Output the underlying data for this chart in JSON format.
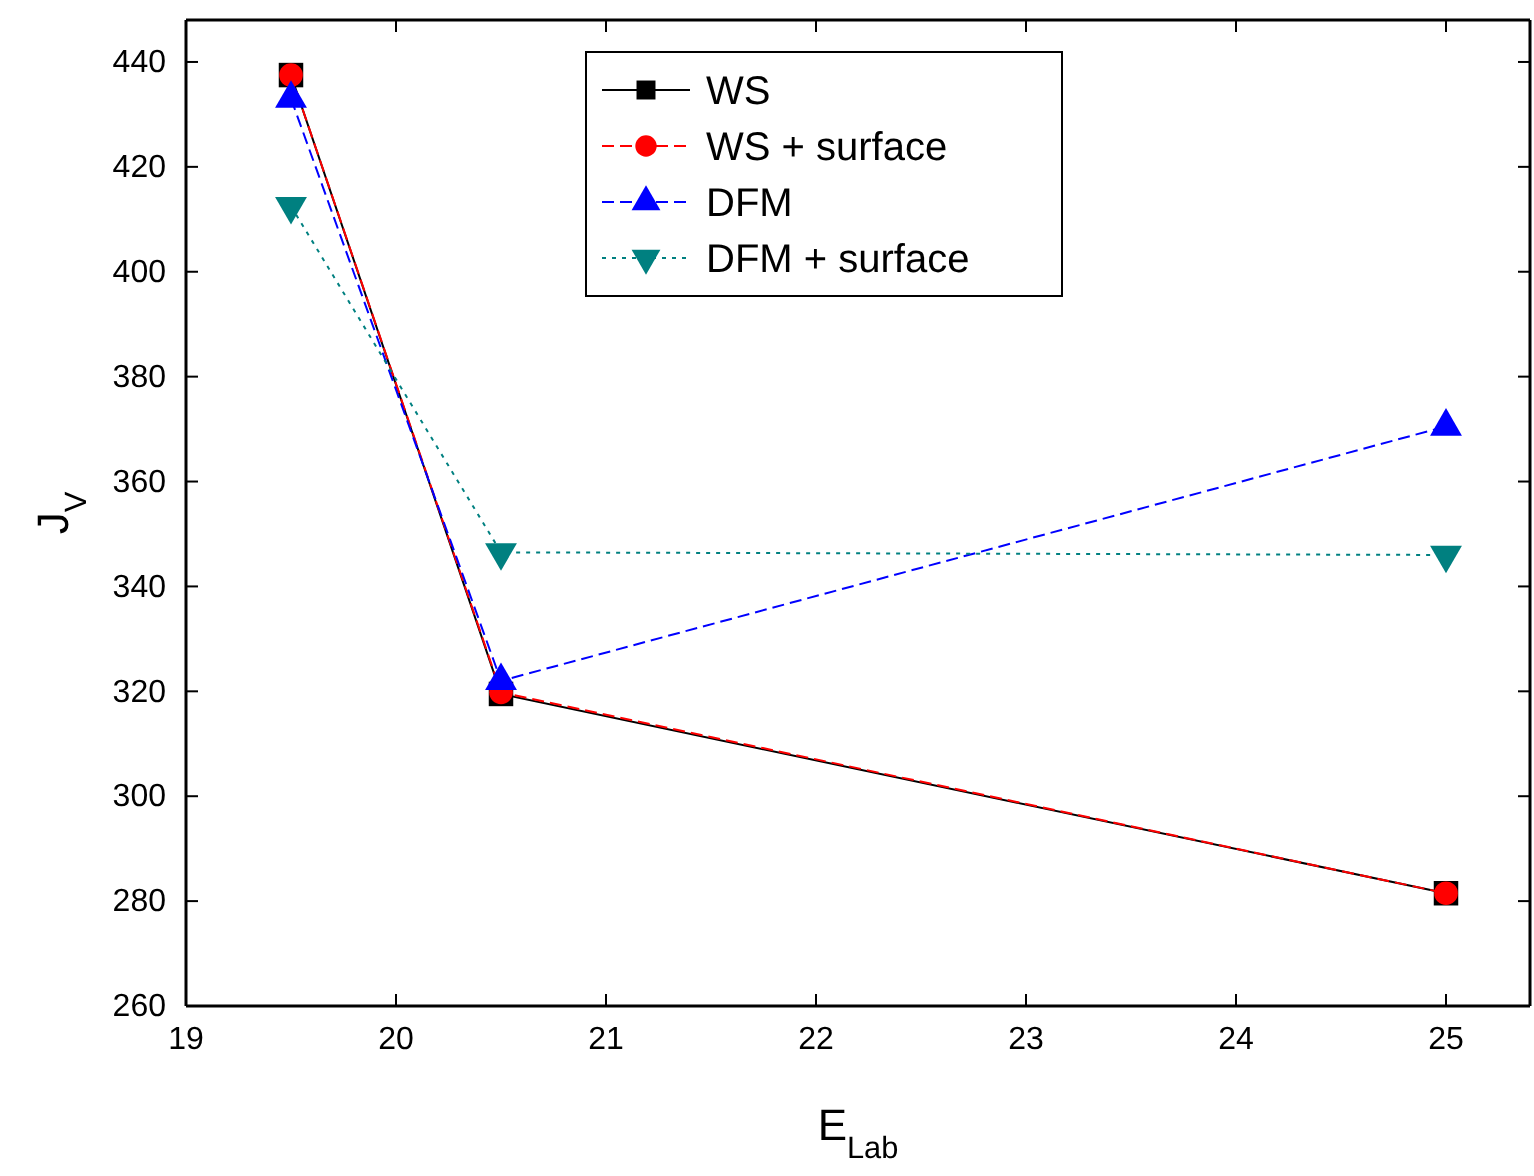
{
  "chart_data": {
    "type": "line",
    "xlabel": "E$_{Lab}$",
    "ylabel": "J$_{V}$",
    "xlim": [
      19,
      25.4
    ],
    "xticks": [
      19,
      20,
      21,
      22,
      23,
      24,
      25
    ],
    "ylim": [
      260,
      448
    ],
    "yticks": [
      260,
      280,
      300,
      320,
      340,
      360,
      380,
      400,
      420,
      440
    ],
    "x": [
      19.5,
      20.5,
      25
    ],
    "series": [
      {
        "name": "WS",
        "color": "#000000",
        "values": [
          437.5,
          319.5,
          281.5
        ],
        "marker": "square",
        "line_style": "solid"
      },
      {
        "name": "WS + surface",
        "color": "#ff0000",
        "values": [
          437.5,
          319.8,
          281.5
        ],
        "marker": "circle",
        "line_style": "dashed"
      },
      {
        "name": "DFM",
        "color": "#0000ff",
        "values": [
          433,
          322,
          370.5
        ],
        "marker": "triangle",
        "line_style": "dashed"
      },
      {
        "name": "DFM + surface",
        "color": "#008080",
        "values": [
          412.5,
          346.5,
          346
        ],
        "marker": "triangle-down",
        "line_style": "dotted"
      }
    ],
    "legend": "top",
    "grid": false
  }
}
